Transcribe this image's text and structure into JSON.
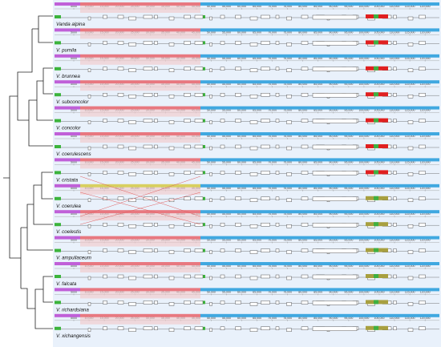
{
  "ruler": [
    "5000",
    "10,000",
    "15,000",
    "20,000",
    "25,000",
    "30,000",
    "35,000",
    "40,000",
    "45,000",
    "50,000",
    "55,000",
    "60,000",
    "65,000",
    "70,000",
    "75,000",
    "80,000",
    "85,000",
    "90,000",
    "95,000",
    "100,000",
    "105,000",
    "110,000",
    "115,000",
    "120,000"
  ],
  "species": [
    "Vanda alpina",
    "V. pumila",
    "V. brunnea",
    "V. subconcolor",
    "V. concolor",
    "V. coerulescens",
    "V. cristata",
    "V. coerulea",
    "V. coelestis",
    "V. ampullaceum",
    "V. falcata",
    "V. richardsiana",
    "V. xichangensis"
  ]
}
